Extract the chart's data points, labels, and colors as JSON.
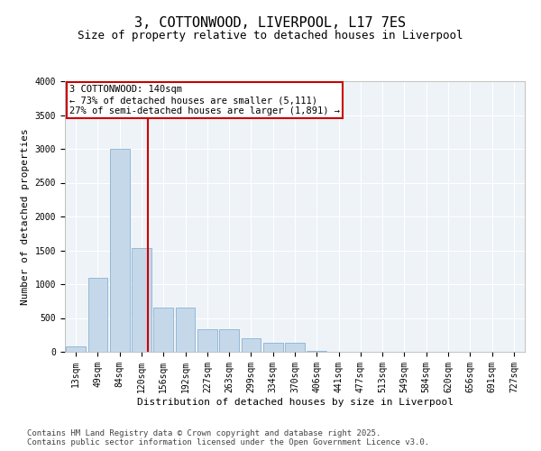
{
  "title": "3, COTTONWOOD, LIVERPOOL, L17 7ES",
  "subtitle": "Size of property relative to detached houses in Liverpool",
  "xlabel": "Distribution of detached houses by size in Liverpool",
  "ylabel": "Number of detached properties",
  "bar_color": "#c5d8ea",
  "bar_edge_color": "#7aa8c8",
  "line_color": "#cc0000",
  "annotation_box_color": "#cc0000",
  "background_color": "#eef3f8",
  "categories": [
    "13sqm",
    "49sqm",
    "84sqm",
    "120sqm",
    "156sqm",
    "192sqm",
    "227sqm",
    "263sqm",
    "299sqm",
    "334sqm",
    "370sqm",
    "406sqm",
    "441sqm",
    "477sqm",
    "513sqm",
    "549sqm",
    "584sqm",
    "620sqm",
    "656sqm",
    "691sqm",
    "727sqm"
  ],
  "values": [
    75,
    1100,
    3000,
    1530,
    650,
    650,
    340,
    340,
    195,
    130,
    130,
    20,
    0,
    0,
    0,
    0,
    0,
    0,
    0,
    0,
    0
  ],
  "ylim": [
    0,
    4000
  ],
  "yticks": [
    0,
    500,
    1000,
    1500,
    2000,
    2500,
    3000,
    3500,
    4000
  ],
  "property_name": "3 COTTONWOOD: 140sqm",
  "annotation_line1": "← 73% of detached houses are smaller (5,111)",
  "annotation_line2": "27% of semi-detached houses are larger (1,891) →",
  "vline_x_index": 3.3,
  "footer_line1": "Contains HM Land Registry data © Crown copyright and database right 2025.",
  "footer_line2": "Contains public sector information licensed under the Open Government Licence v3.0.",
  "title_fontsize": 11,
  "subtitle_fontsize": 9,
  "axis_label_fontsize": 8,
  "tick_fontsize": 7,
  "annotation_fontsize": 7.5,
  "footer_fontsize": 6.5
}
